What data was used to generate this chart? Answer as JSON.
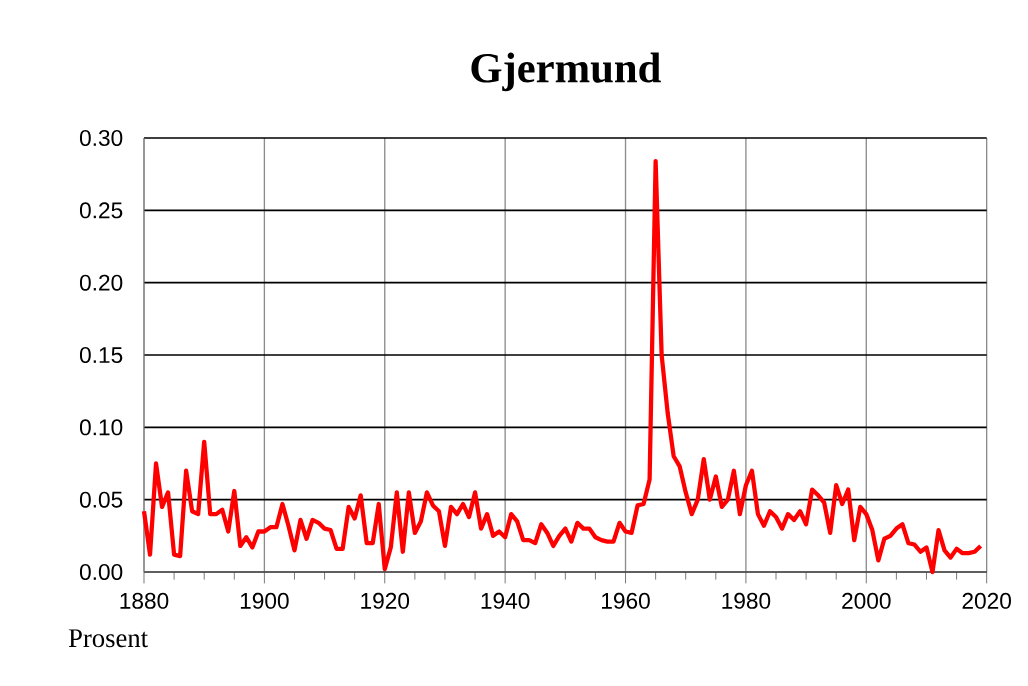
{
  "chart_data": {
    "type": "line",
    "title": "Gjermund",
    "ylabel": "Prosent",
    "x": [
      1880,
      1881,
      1882,
      1883,
      1884,
      1885,
      1886,
      1887,
      1888,
      1889,
      1890,
      1891,
      1892,
      1893,
      1894,
      1895,
      1896,
      1897,
      1898,
      1899,
      1900,
      1901,
      1902,
      1903,
      1904,
      1905,
      1906,
      1907,
      1908,
      1909,
      1910,
      1911,
      1912,
      1913,
      1914,
      1915,
      1916,
      1917,
      1918,
      1919,
      1920,
      1921,
      1922,
      1923,
      1924,
      1925,
      1926,
      1927,
      1928,
      1929,
      1930,
      1931,
      1932,
      1933,
      1934,
      1935,
      1936,
      1937,
      1938,
      1939,
      1940,
      1941,
      1942,
      1943,
      1944,
      1945,
      1946,
      1947,
      1948,
      1949,
      1950,
      1951,
      1952,
      1953,
      1954,
      1955,
      1956,
      1957,
      1958,
      1959,
      1960,
      1961,
      1962,
      1963,
      1964,
      1965,
      1966,
      1967,
      1968,
      1969,
      1970,
      1971,
      1972,
      1973,
      1974,
      1975,
      1976,
      1977,
      1978,
      1979,
      1980,
      1981,
      1982,
      1983,
      1984,
      1985,
      1986,
      1987,
      1988,
      1989,
      1990,
      1991,
      1992,
      1993,
      1994,
      1995,
      1996,
      1997,
      1998,
      1999,
      2000,
      2001,
      2002,
      2003,
      2004,
      2005,
      2006,
      2007,
      2008,
      2009,
      2010,
      2011,
      2012,
      2013,
      2014,
      2015,
      2016,
      2017,
      2018,
      2019
    ],
    "series": [
      {
        "color": "#ff0000",
        "values": [
          0.042,
          0.012,
          0.075,
          0.045,
          0.055,
          0.012,
          0.011,
          0.07,
          0.042,
          0.04,
          0.09,
          0.04,
          0.04,
          0.043,
          0.028,
          0.056,
          0.018,
          0.024,
          0.017,
          0.028,
          0.028,
          0.031,
          0.031,
          0.047,
          0.032,
          0.015,
          0.036,
          0.023,
          0.036,
          0.034,
          0.03,
          0.029,
          0.016,
          0.016,
          0.045,
          0.037,
          0.053,
          0.02,
          0.02,
          0.047,
          0.002,
          0.017,
          0.055,
          0.014,
          0.055,
          0.027,
          0.035,
          0.055,
          0.046,
          0.042,
          0.018,
          0.045,
          0.04,
          0.047,
          0.038,
          0.055,
          0.03,
          0.04,
          0.025,
          0.028,
          0.024,
          0.04,
          0.035,
          0.022,
          0.022,
          0.02,
          0.033,
          0.027,
          0.018,
          0.025,
          0.03,
          0.021,
          0.034,
          0.03,
          0.03,
          0.024,
          0.022,
          0.021,
          0.021,
          0.034,
          0.028,
          0.027,
          0.046,
          0.047,
          0.064,
          0.284,
          0.15,
          0.11,
          0.08,
          0.073,
          0.055,
          0.04,
          0.05,
          0.078,
          0.05,
          0.066,
          0.045,
          0.05,
          0.07,
          0.04,
          0.06,
          0.07,
          0.04,
          0.032,
          0.042,
          0.038,
          0.03,
          0.04,
          0.036,
          0.042,
          0.033,
          0.057,
          0.053,
          0.048,
          0.027,
          0.06,
          0.047,
          0.057,
          0.022,
          0.045,
          0.04,
          0.029,
          0.008,
          0.023,
          0.025,
          0.03,
          0.033,
          0.02,
          0.019,
          0.014,
          0.017,
          0.0,
          0.029,
          0.015,
          0.01,
          0.016,
          0.013,
          0.013,
          0.014,
          0.018
        ]
      }
    ],
    "xlim": [
      1880,
      2020
    ],
    "xticks": [
      1880,
      1900,
      1920,
      1940,
      1960,
      1980,
      2000,
      2020
    ],
    "ylim": [
      0,
      0.3
    ],
    "yticks": [
      {
        "value": 0,
        "label": "0.00"
      },
      {
        "value": 0.05,
        "label": "0.05"
      },
      {
        "value": 0.1,
        "label": "0.10"
      },
      {
        "value": 0.15,
        "label": "0.15"
      },
      {
        "value": 0.2,
        "label": "0.20"
      },
      {
        "value": 0.25,
        "label": "0.25"
      },
      {
        "value": 0.3,
        "label": "0.30"
      }
    ],
    "grid": true,
    "line_style": "solid",
    "marker": "none"
  }
}
